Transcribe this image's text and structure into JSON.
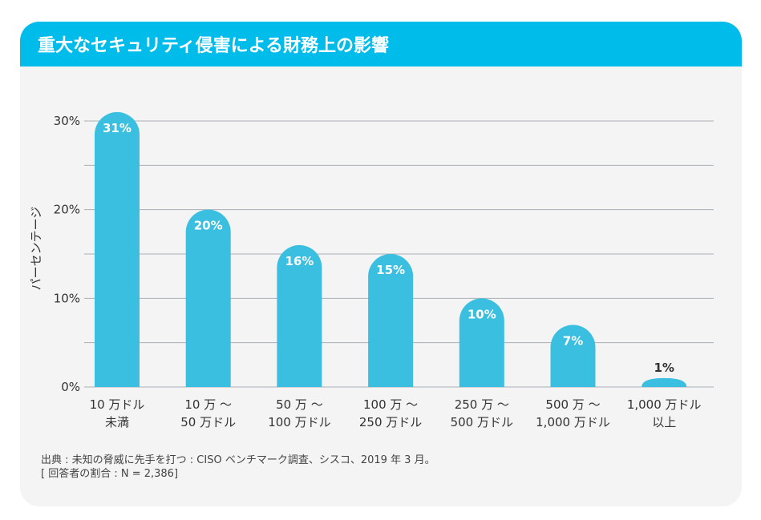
{
  "header": {
    "title": "重大なセキュリティ侵害による財務上の影響"
  },
  "source": {
    "line1": "出典 : 未知の脅威に先手を打つ : CISO ベンチマーク調査、シスコ、2019 年 3 月。",
    "line2": "[ 回答者の割合 : N = 2,386]"
  },
  "colors": {
    "header": "#00bceb",
    "bar": "#3bbfe0",
    "background": "#f4f4f4"
  },
  "chart_data": {
    "type": "bar",
    "title": "",
    "xlabel": "",
    "ylabel": "パーセンテージ",
    "ylim": [
      0,
      30
    ],
    "yticks": [
      "0%",
      "10%",
      "20%",
      "30%"
    ],
    "grid": true,
    "categories": [
      [
        "10 万ドル",
        "未満"
      ],
      [
        "10 万 ～",
        "50 万ドル"
      ],
      [
        "50 万 ～",
        "100 万ドル"
      ],
      [
        "100 万 ～",
        "250 万ドル"
      ],
      [
        "250 万 ～",
        "500 万ドル"
      ],
      [
        "500 万 ～",
        "1,000 万ドル"
      ],
      [
        "1,000 万ドル",
        "以上"
      ]
    ],
    "values": [
      31,
      20,
      16,
      15,
      10,
      7,
      1
    ],
    "data_labels": [
      "31%",
      "20%",
      "16%",
      "15%",
      "10%",
      "7%",
      "1%"
    ]
  }
}
